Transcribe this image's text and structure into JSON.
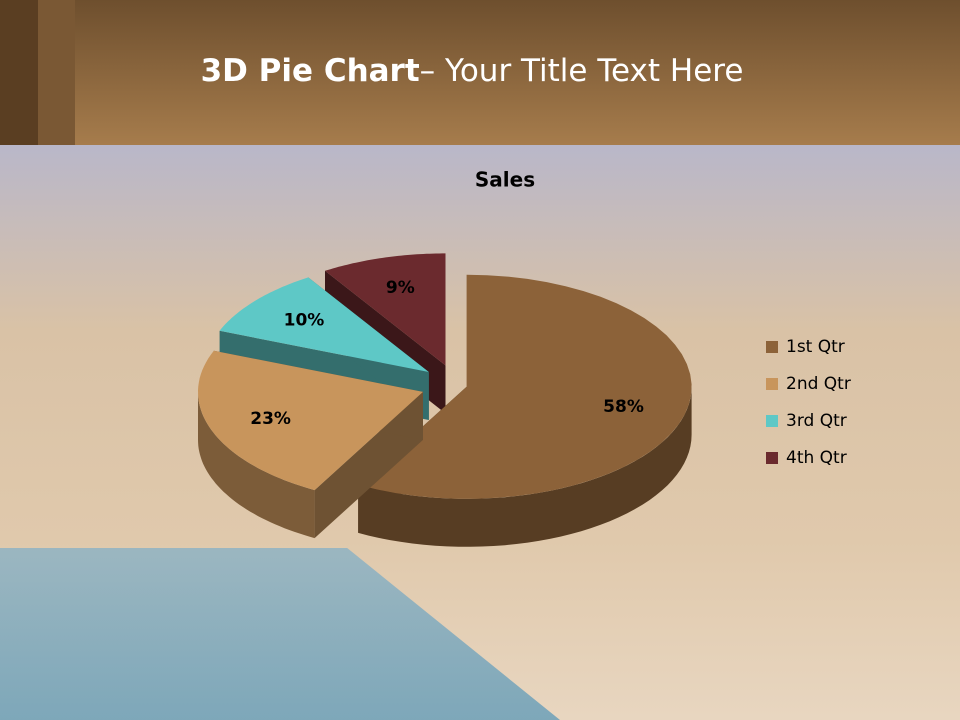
{
  "slide_title": {
    "bold": "3D Pie Chart",
    "rest": "– Your Title Text Here"
  },
  "chart_data": {
    "type": "pie",
    "title": "Sales",
    "categories": [
      "1st Qtr",
      "2nd Qtr",
      "3rd Qtr",
      "4th Qtr"
    ],
    "values": [
      58,
      23,
      10,
      9
    ],
    "value_labels": [
      "58%",
      "23%",
      "10%",
      "9%"
    ],
    "colors": [
      "#8c6239",
      "#c8955c",
      "#5ec8c6",
      "#6b2a2e"
    ],
    "legend": "right"
  }
}
